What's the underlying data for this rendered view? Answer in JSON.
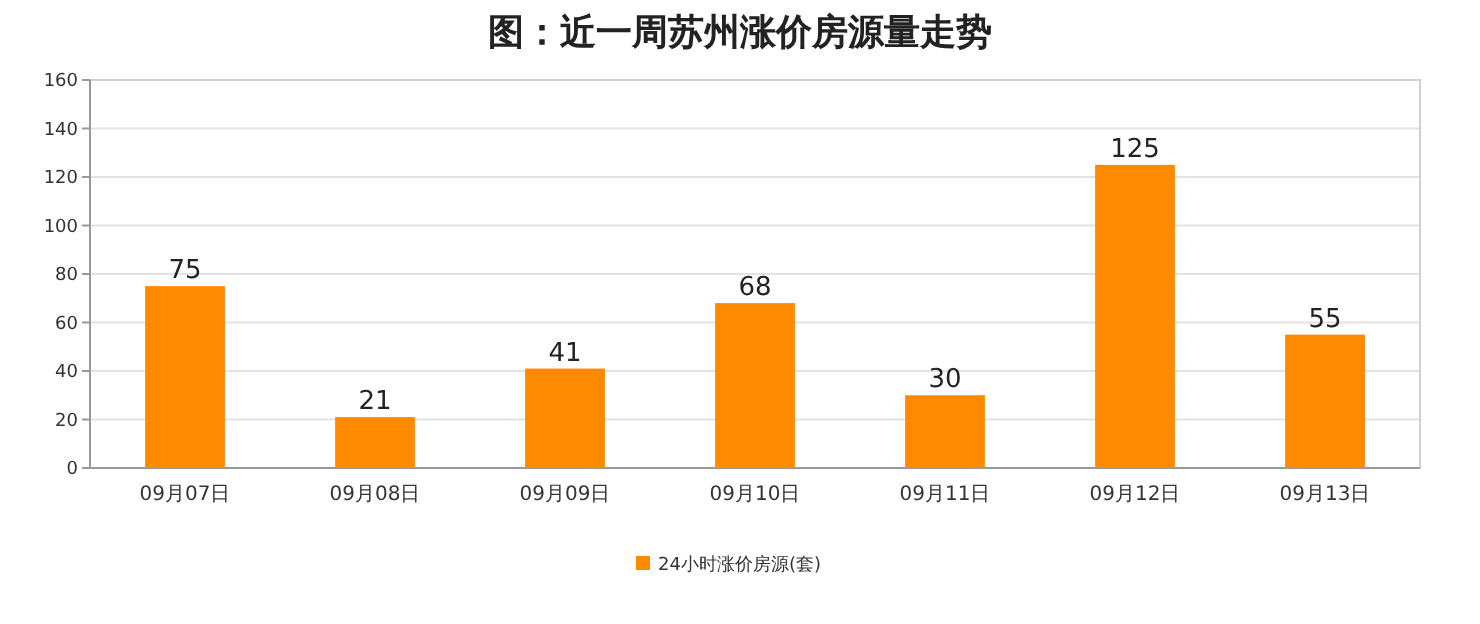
{
  "chart_data": {
    "type": "bar",
    "title": "图：近一周苏州涨价房源量走势",
    "categories": [
      "09月07日",
      "09月08日",
      "09月09日",
      "09月10日",
      "09月11日",
      "09月12日",
      "09月13日"
    ],
    "series": [
      {
        "name": "24小时涨价房源(套)",
        "color": "#ff8a00",
        "values": [
          75,
          21,
          41,
          68,
          30,
          125,
          55
        ]
      }
    ],
    "ylim": [
      0,
      160
    ],
    "yticks": [
      0,
      20,
      40,
      60,
      80,
      100,
      120,
      140,
      160
    ],
    "grid": "y",
    "legend": "bottom",
    "data_labels": true
  }
}
